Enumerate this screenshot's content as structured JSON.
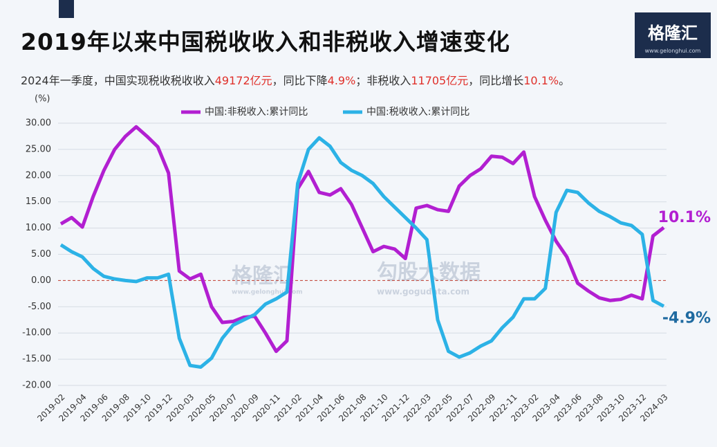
{
  "chart_data": {
    "type": "line",
    "title": "2019年以来中国税收收入和非税收入增速变化",
    "subtitle": [
      {
        "text": "2024年一季度，中国实现税收税收收入",
        "color": "#333333"
      },
      {
        "text": "49172亿元",
        "color": "#e0302a"
      },
      {
        "text": "，同比下降",
        "color": "#333333"
      },
      {
        "text": "4.9%",
        "color": "#e0302a"
      },
      {
        "text": "；非税收入",
        "color": "#333333"
      },
      {
        "text": "11705亿元",
        "color": "#e0302a"
      },
      {
        "text": "，同比增长",
        "color": "#333333"
      },
      {
        "text": "10.1%",
        "color": "#e0302a"
      },
      {
        "text": "。",
        "color": "#333333"
      }
    ],
    "y_unit": "(%)",
    "logo": {
      "name": "格隆汇",
      "url": "www.gelonghui.com"
    },
    "watermark": [
      "格隆汇",
      "www.gelonghui.com",
      "勾股大数据",
      "www.gogudata.com"
    ],
    "categories": [
      "2019-02",
      null,
      "2019-04",
      null,
      "2019-06",
      null,
      "2019-08",
      null,
      "2019-10",
      null,
      "2019-12",
      null,
      "2020-03",
      null,
      "2020-05",
      null,
      "2020-07",
      null,
      "2020-09",
      null,
      "2020-11",
      null,
      "2021-02",
      null,
      "2021-04",
      null,
      "2021-06",
      null,
      "2021-08",
      null,
      "2021-10",
      null,
      "2021-12",
      null,
      "2022-03",
      null,
      "2022-05",
      null,
      "2022-07",
      null,
      "2022-09",
      null,
      "2022-11",
      null,
      "2023-02",
      null,
      "2023-04",
      null,
      "2023-06",
      null,
      "2023-08",
      null,
      "2023-10",
      null,
      "2023-12",
      null,
      "2024-03"
    ],
    "series": [
      {
        "name": "中国:非税收入:累计同比",
        "color": "#b21fd1",
        "values": [
          10.8,
          12,
          10.2,
          16,
          21,
          25,
          27.5,
          29.3,
          27.5,
          25.5,
          20.5,
          1.8,
          0.3,
          1.2,
          -5,
          -8,
          -7.8,
          -7,
          -6.8,
          -10,
          -13.5,
          -11.5,
          17.5,
          20.8,
          16.8,
          16.3,
          17.5,
          14.5,
          10,
          5.5,
          6.5,
          6,
          4.2,
          13.8,
          14.3,
          13.5,
          13.2,
          18,
          20,
          21.3,
          23.7,
          23.5,
          22.3,
          24.5,
          16,
          11.5,
          7.5,
          4.5,
          -0.5,
          -2,
          -3.3,
          -3.8,
          -3.6,
          -2.8,
          -3.5,
          8.5,
          10.1
        ]
      },
      {
        "name": "中国:税收收入:累计同比",
        "color": "#2cb2e6",
        "values": [
          6.8,
          5.5,
          4.5,
          2.3,
          0.8,
          0.3,
          0,
          -0.2,
          0.5,
          0.5,
          1.2,
          -11,
          -16.2,
          -16.5,
          -14.8,
          -11,
          -8.5,
          -7.5,
          -6.5,
          -4.5,
          -3.5,
          -2.2,
          18.5,
          25,
          27.2,
          25.6,
          22.5,
          21,
          20,
          18.5,
          16,
          14,
          12,
          10,
          7.8,
          -7.5,
          -13.5,
          -14.6,
          -13.8,
          -12.5,
          -11.5,
          -9,
          -7,
          -3.5,
          -3.5,
          -1.5,
          13,
          17.2,
          16.8,
          14.8,
          13.2,
          12.2,
          11,
          10.5,
          8.8,
          -3.8,
          -4.9
        ]
      }
    ],
    "annotations": [
      {
        "text": "10.1%",
        "series": 0,
        "color": "#b21fd1"
      },
      {
        "text": "-4.9%",
        "series": 1,
        "color": "#1f6aa0"
      }
    ],
    "ylim": [
      -20,
      30
    ],
    "yticks": [
      {
        "value": -20,
        "label": "-20.00"
      },
      {
        "value": -15,
        "label": "-15.00"
      },
      {
        "value": -10,
        "label": "-10.00"
      },
      {
        "value": -5,
        "label": "-5.00"
      },
      {
        "value": 0,
        "label": "0.00"
      },
      {
        "value": 5,
        "label": "5.00"
      },
      {
        "value": 10,
        "label": "10.00"
      },
      {
        "value": 15,
        "label": "15.00"
      },
      {
        "value": 20,
        "label": "20.00"
      },
      {
        "value": 25,
        "label": "25.00"
      },
      {
        "value": 30,
        "label": "30.00"
      }
    ],
    "grid": true,
    "zero_line_color": "#c0392b"
  }
}
